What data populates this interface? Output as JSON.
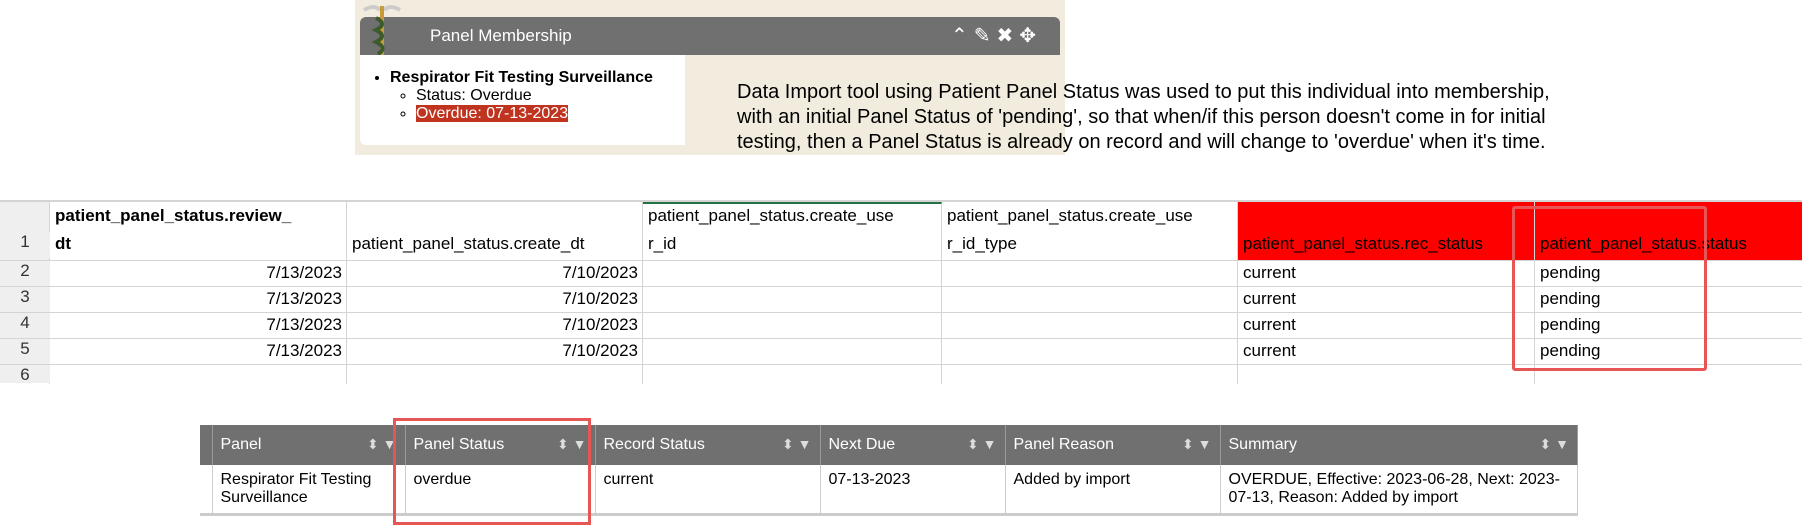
{
  "widget": {
    "title": "Panel Membership",
    "icons": [
      "chevron-up-icon",
      "pencil-icon",
      "close-icon",
      "move-icon"
    ],
    "panel_name": "Respirator Fit Testing Surveillance",
    "status": "Status: Overdue",
    "overdue": "Overdue: 07-13-2023"
  },
  "note": "Data Import tool using Patient Panel Status was used to put this individual into membership, with an initial Panel Status of 'pending', so that when/if this person doesn't come in for initial testing, then a Panel Status is already on record and will change to 'overdue' when it's time.",
  "sheet": {
    "row_numbers": [
      "1",
      "2",
      "3",
      "4",
      "5",
      "6"
    ],
    "headers": [
      {
        "l1": "patient_panel_status.review_",
        "l2": "dt"
      },
      {
        "l1": "",
        "l2": "patient_panel_status.create_dt"
      },
      {
        "l1": "patient_panel_status.create_use",
        "l2": "r_id"
      },
      {
        "l1": "patient_panel_status.create_use",
        "l2": "r_id_type"
      },
      {
        "l1": "",
        "l2": "patient_panel_status.rec_status"
      },
      {
        "l1": "",
        "l2": "patient_panel_status.status"
      }
    ],
    "rows": [
      [
        "7/13/2023",
        "7/10/2023",
        "",
        "",
        "current",
        "pending"
      ],
      [
        "7/13/2023",
        "7/10/2023",
        "",
        "",
        "current",
        "pending"
      ],
      [
        "7/13/2023",
        "7/10/2023",
        "",
        "",
        "current",
        "pending"
      ],
      [
        "7/13/2023",
        "7/10/2023",
        "",
        "",
        "current",
        "pending"
      ]
    ],
    "highlight_color": "#ff0000"
  },
  "grid": {
    "columns": [
      "Panel",
      "Panel Status",
      "Record Status",
      "Next Due",
      "Panel Reason",
      "Summary"
    ],
    "row": [
      "Respirator Fit Testing Surveillance",
      "overdue",
      "current",
      "07-13-2023",
      "Added by import",
      "OVERDUE, Effective: 2023-06-28, Next: 2023-07-13, Reason: Added by import"
    ]
  }
}
